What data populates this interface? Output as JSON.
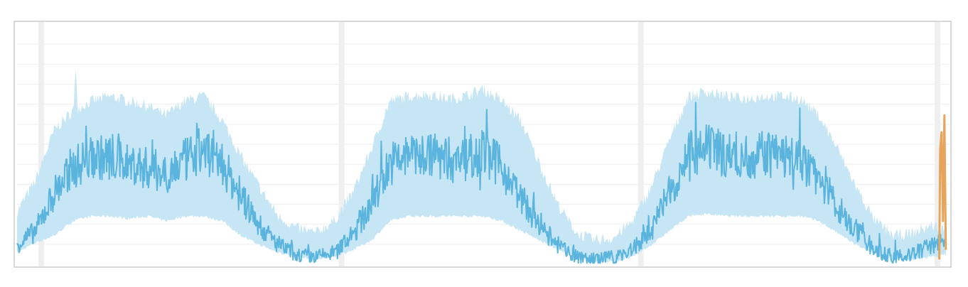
{
  "chart_data": {
    "type": "area",
    "title": "",
    "xlabel": "",
    "ylabel": "",
    "grid": true,
    "legend": "none",
    "x_range": [
      0,
      100
    ],
    "y_range": [
      0,
      100
    ],
    "colors": {
      "band": "#c3e5f4",
      "line": "#5ab4de",
      "highlight": "#e8a45a",
      "grid": "#eeeeee",
      "day_marker": "#efefef",
      "frame": "#cccccc"
    },
    "day_markers": [
      2.6,
      34.8,
      66.9,
      98.7
    ],
    "series": [
      {
        "role": "band",
        "x": [
          0,
          2,
          4,
          6,
          8,
          10,
          12,
          14,
          16,
          18,
          20,
          22,
          24,
          26,
          28,
          30,
          32,
          34,
          36,
          38,
          40,
          42,
          44,
          46,
          48,
          50,
          52,
          54,
          56,
          58,
          60,
          62,
          64,
          66,
          68,
          70,
          72,
          74,
          76,
          78,
          80,
          82,
          84,
          86,
          88,
          90,
          92,
          94,
          96,
          98,
          99.6
        ],
        "upper": [
          22,
          35,
          56,
          64,
          68,
          70,
          68,
          66,
          62,
          68,
          70,
          60,
          45,
          32,
          20,
          15,
          13,
          18,
          30,
          48,
          68,
          70,
          71,
          69,
          70,
          73,
          68,
          60,
          42,
          25,
          13,
          10,
          11,
          18,
          32,
          52,
          70,
          72,
          70,
          69,
          70,
          70,
          69,
          62,
          48,
          32,
          18,
          12,
          13,
          16,
          15
        ],
        "lower": [
          5,
          9,
          12,
          18,
          20,
          20,
          19,
          20,
          18,
          20,
          20,
          18,
          12,
          8,
          5,
          3,
          2,
          3,
          6,
          10,
          18,
          20,
          20,
          20,
          20,
          20,
          18,
          14,
          10,
          6,
          3,
          1,
          1,
          3,
          8,
          14,
          20,
          21,
          20,
          20,
          20,
          20,
          20,
          18,
          13,
          8,
          4,
          2,
          2,
          3,
          4
        ]
      },
      {
        "role": "mean",
        "x": [
          0,
          2,
          4,
          6,
          8,
          10,
          12,
          14,
          16,
          18,
          20,
          22,
          24,
          26,
          28,
          30,
          32,
          34,
          36,
          38,
          40,
          42,
          44,
          46,
          48,
          50,
          52,
          54,
          56,
          58,
          60,
          62,
          64,
          66,
          68,
          70,
          72,
          74,
          76,
          78,
          80,
          82,
          84,
          86,
          88,
          90,
          92,
          94,
          96,
          98,
          99.6
        ],
        "y": [
          8,
          14,
          30,
          40,
          45,
          44,
          42,
          40,
          38,
          43,
          48,
          42,
          28,
          16,
          8,
          4,
          3,
          5,
          12,
          25,
          42,
          45,
          46,
          44,
          45,
          47,
          40,
          28,
          16,
          8,
          3,
          2,
          3,
          6,
          14,
          30,
          46,
          48,
          46,
          45,
          46,
          45,
          44,
          36,
          24,
          14,
          6,
          3,
          4,
          8,
          10
        ],
        "noise": 8
      },
      {
        "role": "highlight",
        "x": [
          98.9,
          99.0,
          99.15,
          99.3,
          99.45,
          99.6
        ],
        "y": [
          2,
          48,
          55,
          18,
          62,
          6
        ]
      }
    ]
  }
}
